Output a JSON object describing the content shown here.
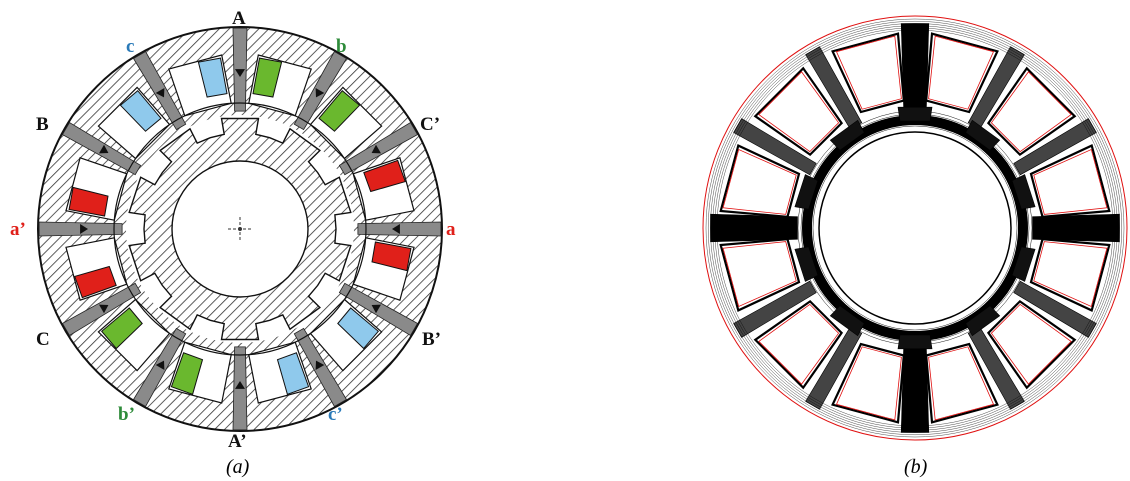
{
  "figure": {
    "panel_a": {
      "caption": "(a)",
      "phase_labels": [
        {
          "id": "A",
          "text": "A"
        },
        {
          "id": "Ap",
          "text": "A’"
        },
        {
          "id": "B",
          "text": "B"
        },
        {
          "id": "Bp",
          "text": "B’"
        },
        {
          "id": "C",
          "text": "C"
        },
        {
          "id": "Cp",
          "text": "C’"
        },
        {
          "id": "a",
          "text": "a"
        },
        {
          "id": "ap",
          "text": "a’"
        },
        {
          "id": "b",
          "text": "b"
        },
        {
          "id": "bp",
          "text": "b’"
        },
        {
          "id": "c",
          "text": "c"
        },
        {
          "id": "cp",
          "text": "c’"
        }
      ],
      "stator_poles": 12,
      "rotor_teeth": 10,
      "coil_colors": {
        "a": "#e0201a",
        "b": "#6ab82e",
        "c": "#8fc9ec",
        "label_black": "#111111",
        "label_red": "#e0201a",
        "label_green": "#2e8b3a",
        "label_blue": "#2a7ab8"
      }
    },
    "panel_b": {
      "caption": "(b)",
      "outline_color": "#e01010",
      "flux_color": "#000000"
    }
  }
}
